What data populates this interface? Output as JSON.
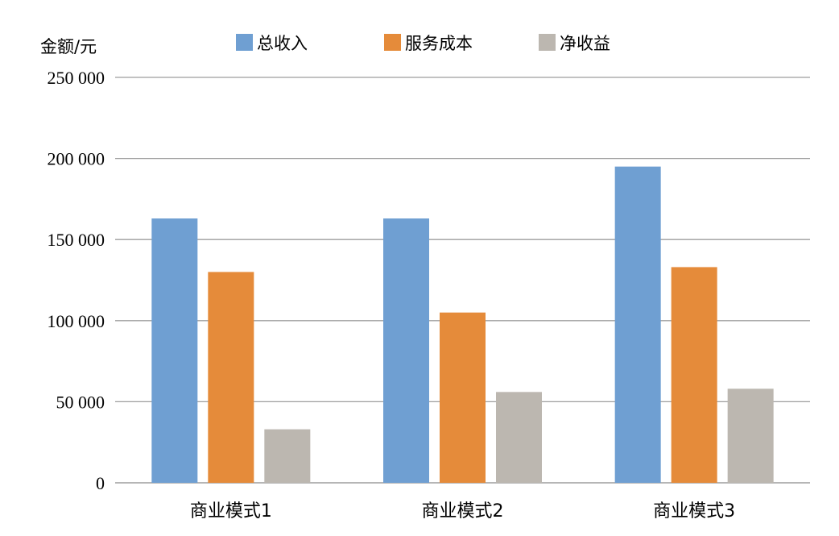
{
  "chart_data": {
    "type": "bar",
    "ylabel": "金额/元",
    "xlabel": "",
    "categories": [
      "商业模式1",
      "商业模式2",
      "商业模式3"
    ],
    "series": [
      {
        "name": "总收入",
        "color": "#6f9fd2",
        "values": [
          163000,
          163000,
          195000
        ]
      },
      {
        "name": "服务成本",
        "color": "#e58b3a",
        "values": [
          130000,
          105000,
          133000
        ]
      },
      {
        "name": "净收益",
        "color": "#bcb7b0",
        "values": [
          33000,
          56000,
          58000
        ]
      }
    ],
    "ylim": [
      0,
      250000
    ],
    "yticks": [
      0,
      50000,
      100000,
      150000,
      200000,
      250000
    ],
    "ytick_labels": [
      "0",
      "50 000",
      "100 000",
      "150 000",
      "200 000",
      "250 000"
    ],
    "grid": true,
    "gridline_color": "#9e9e9e",
    "legend_position": "top"
  }
}
